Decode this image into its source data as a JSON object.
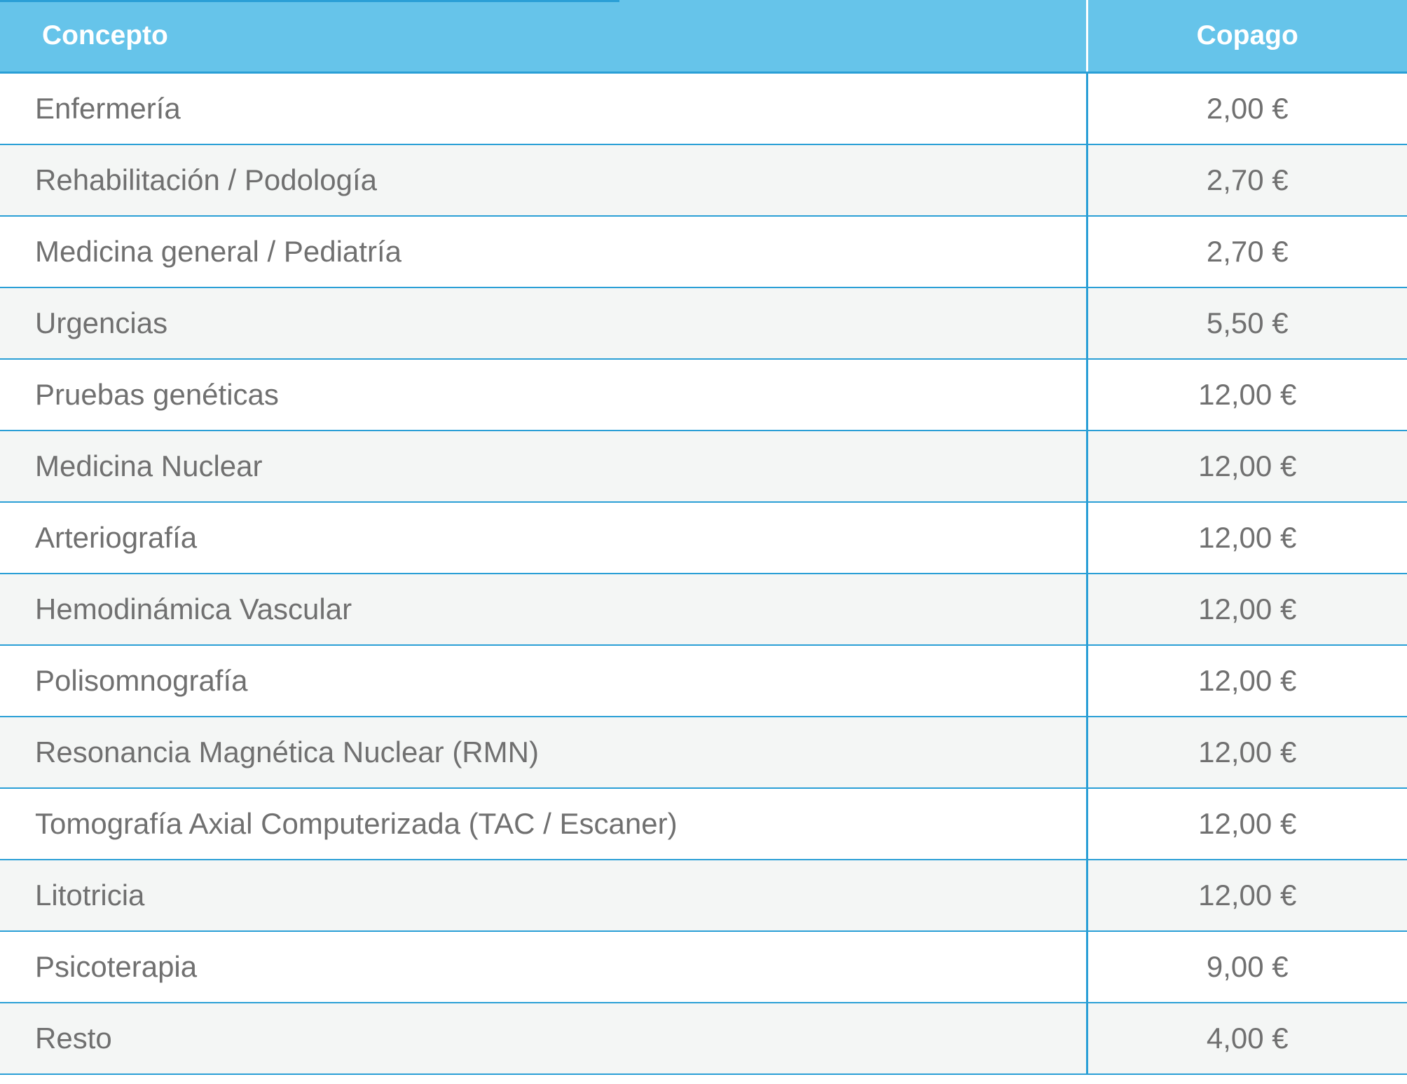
{
  "colors": {
    "header_bg": "#66c4ea",
    "header_text": "#ffffff",
    "row_alt_bg": "#f4f6f5",
    "border": "#2a9fd6",
    "body_text": "#707070"
  },
  "table": {
    "headers": {
      "concept": "Concepto",
      "copago": "Copago"
    },
    "rows": [
      {
        "concept": "Enfermería",
        "copago": "2,00 €"
      },
      {
        "concept": "Rehabilitación / Podología",
        "copago": "2,70 €"
      },
      {
        "concept": "Medicina general / Pediatría",
        "copago": "2,70 €"
      },
      {
        "concept": "Urgencias",
        "copago": "5,50 €"
      },
      {
        "concept": "Pruebas genéticas",
        "copago": "12,00 €"
      },
      {
        "concept": "Medicina Nuclear",
        "copago": "12,00 €"
      },
      {
        "concept": "Arteriografía",
        "copago": "12,00 €"
      },
      {
        "concept": "Hemodinámica Vascular",
        "copago": "12,00 €"
      },
      {
        "concept": "Polisomnografía",
        "copago": "12,00 €"
      },
      {
        "concept": "Resonancia Magnética Nuclear (RMN)",
        "copago": "12,00 €"
      },
      {
        "concept": "Tomografía Axial Computerizada (TAC / Escaner)",
        "copago": "12,00 €"
      },
      {
        "concept": "Litotricia",
        "copago": "12,00 €"
      },
      {
        "concept": "Psicoterapia",
        "copago": "9,00 €"
      },
      {
        "concept": "Resto",
        "copago": "4,00 €"
      }
    ]
  }
}
